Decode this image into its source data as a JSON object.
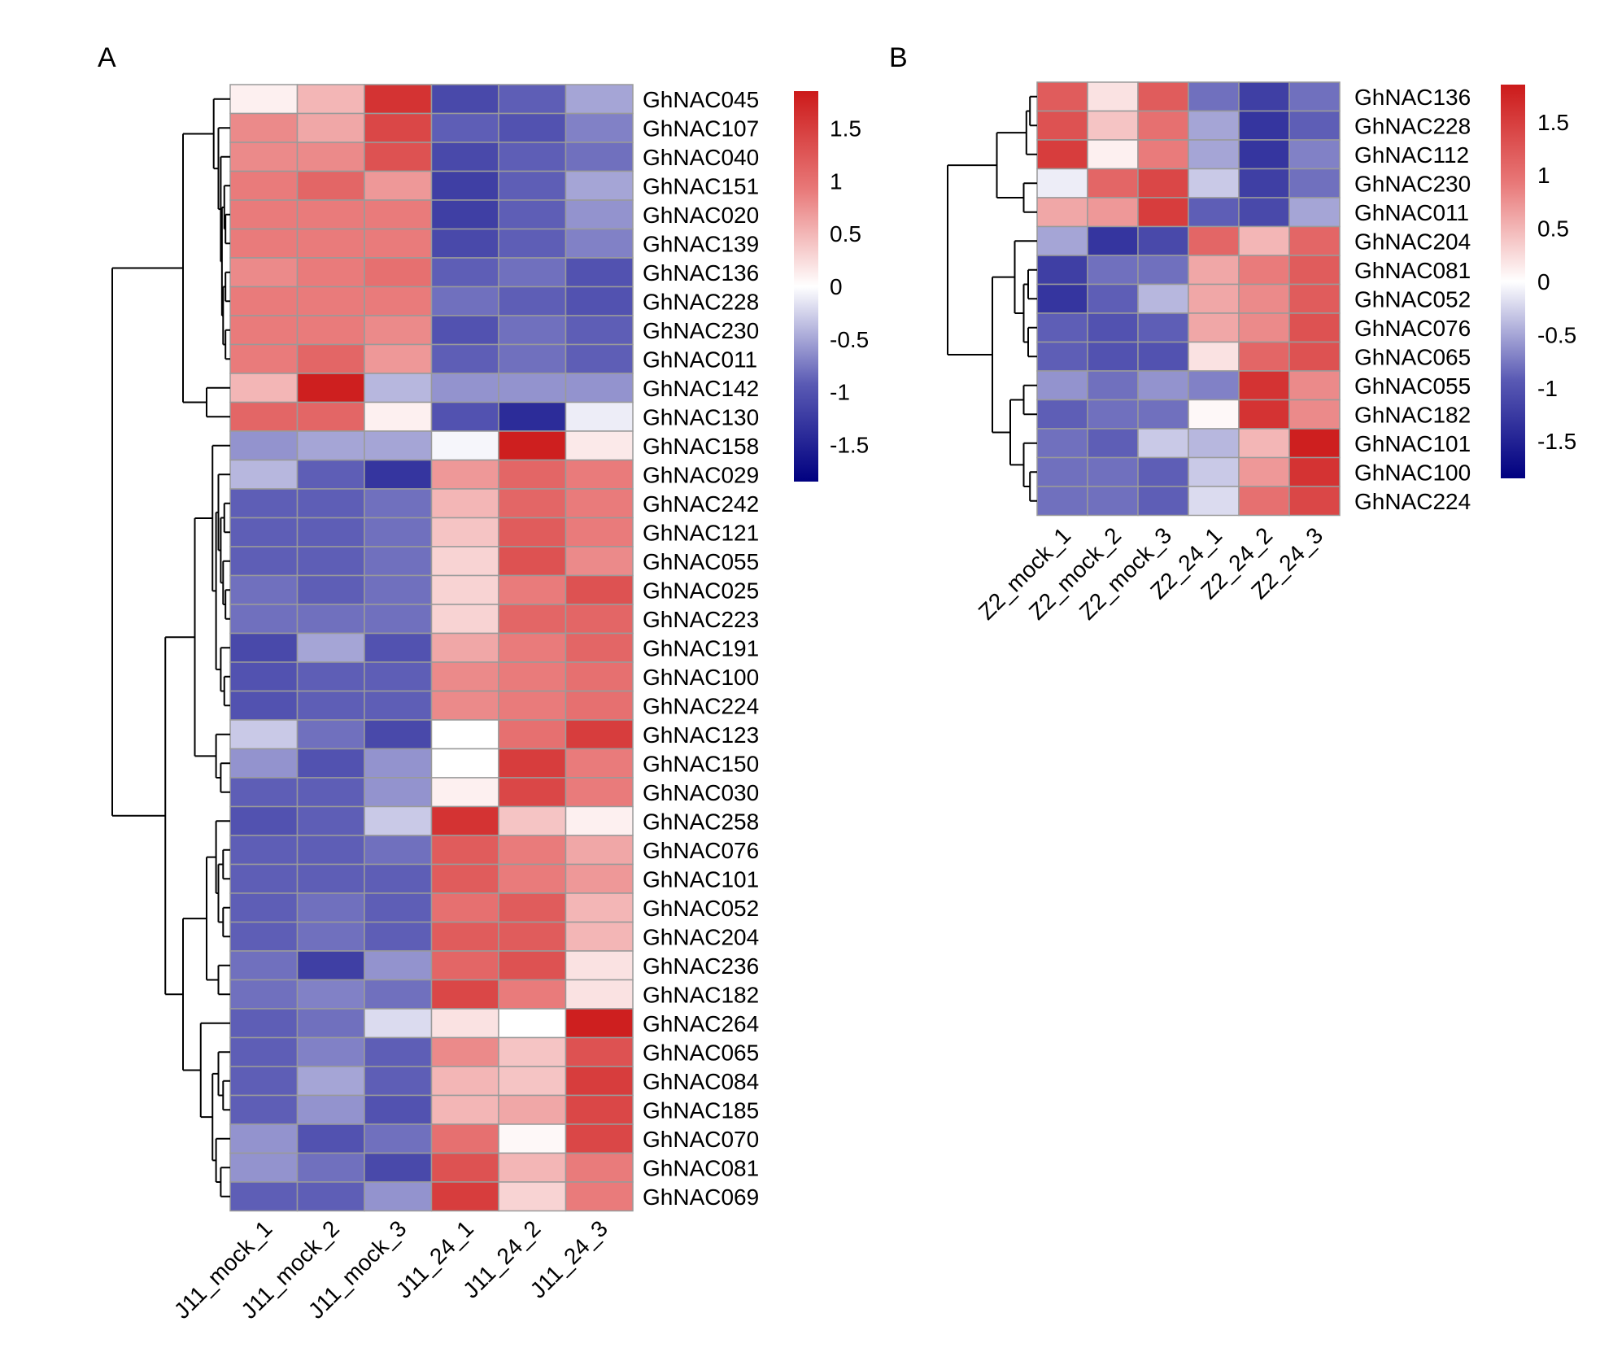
{
  "chart_data": [
    {
      "type": "heatmap",
      "panel": "A",
      "columns": [
        "J11_mock_1",
        "J11_mock_2",
        "J11_mock_3",
        "J11_24_1",
        "J11_24_2",
        "J11_24_3"
      ],
      "rows": [
        "GhNAC045",
        "GhNAC107",
        "GhNAC040",
        "GhNAC151",
        "GhNAC020",
        "GhNAC139",
        "GhNAC136",
        "GhNAC228",
        "GhNAC230",
        "GhNAC011",
        "GhNAC142",
        "GhNAC130",
        "GhNAC158",
        "GhNAC029",
        "GhNAC242",
        "GhNAC121",
        "GhNAC055",
        "GhNAC025",
        "GhNAC223",
        "GhNAC191",
        "GhNAC100",
        "GhNAC224",
        "GhNAC123",
        "GhNAC150",
        "GhNAC030",
        "GhNAC258",
        "GhNAC076",
        "GhNAC101",
        "GhNAC052",
        "GhNAC204",
        "GhNAC236",
        "GhNAC182",
        "GhNAC264",
        "GhNAC065",
        "GhNAC084",
        "GhNAC185",
        "GhNAC070",
        "GhNAC081",
        "GhNAC069"
      ],
      "values": [
        [
          0.1,
          0.5,
          1.6,
          -1.1,
          -0.9,
          -0.5
        ],
        [
          0.8,
          0.6,
          1.4,
          -0.9,
          -1.0,
          -0.7
        ],
        [
          0.8,
          0.8,
          1.3,
          -1.1,
          -0.9,
          -0.8
        ],
        [
          0.9,
          1.1,
          0.7,
          -1.2,
          -0.9,
          -0.5
        ],
        [
          0.9,
          0.9,
          0.9,
          -1.2,
          -0.9,
          -0.6
        ],
        [
          0.9,
          0.9,
          0.9,
          -1.1,
          -0.9,
          -0.7
        ],
        [
          0.8,
          0.9,
          1.0,
          -0.9,
          -0.8,
          -1.0
        ],
        [
          0.9,
          0.9,
          0.9,
          -0.8,
          -0.9,
          -1.0
        ],
        [
          0.9,
          0.9,
          0.8,
          -1.0,
          -0.8,
          -0.9
        ],
        [
          0.9,
          1.1,
          0.7,
          -0.9,
          -0.8,
          -0.9
        ],
        [
          0.5,
          1.8,
          -0.4,
          -0.6,
          -0.6,
          -0.6
        ],
        [
          1.1,
          1.1,
          0.1,
          -1.0,
          -1.4,
          -0.1
        ],
        [
          -0.6,
          -0.5,
          -0.5,
          -0.05,
          1.8,
          0.15
        ],
        [
          -0.4,
          -0.9,
          -1.3,
          0.7,
          1.1,
          0.9
        ],
        [
          -0.9,
          -0.9,
          -0.8,
          0.5,
          1.1,
          0.9
        ],
        [
          -0.9,
          -0.9,
          -0.8,
          0.4,
          1.2,
          0.9
        ],
        [
          -0.9,
          -0.9,
          -0.8,
          0.3,
          1.3,
          0.8
        ],
        [
          -0.8,
          -0.9,
          -0.8,
          0.3,
          0.9,
          1.3
        ],
        [
          -0.8,
          -0.8,
          -0.8,
          0.3,
          1.1,
          1.1
        ],
        [
          -1.1,
          -0.5,
          -1.0,
          0.6,
          0.9,
          1.1
        ],
        [
          -1.0,
          -0.9,
          -0.9,
          0.8,
          0.9,
          1.0
        ],
        [
          -1.0,
          -0.9,
          -0.9,
          0.8,
          0.9,
          1.0
        ],
        [
          -0.3,
          -0.8,
          -1.1,
          0.0,
          1.0,
          1.5
        ],
        [
          -0.6,
          -1.0,
          -0.6,
          0.0,
          1.5,
          0.9
        ],
        [
          -0.9,
          -0.9,
          -0.6,
          0.1,
          1.4,
          0.9
        ],
        [
          -1.0,
          -0.9,
          -0.3,
          1.6,
          0.4,
          0.1
        ],
        [
          -0.9,
          -0.9,
          -0.8,
          1.2,
          0.9,
          0.6
        ],
        [
          -0.9,
          -0.9,
          -0.9,
          1.2,
          0.9,
          0.7
        ],
        [
          -0.9,
          -0.8,
          -0.9,
          1.0,
          1.2,
          0.5
        ],
        [
          -0.9,
          -0.8,
          -0.9,
          1.2,
          1.2,
          0.5
        ],
        [
          -0.8,
          -1.2,
          -0.6,
          1.1,
          1.3,
          0.2
        ],
        [
          -0.8,
          -0.7,
          -0.8,
          1.4,
          0.9,
          0.2
        ],
        [
          -0.9,
          -0.8,
          -0.2,
          0.2,
          0.0,
          1.8
        ],
        [
          -0.9,
          -0.7,
          -0.9,
          0.8,
          0.4,
          1.3
        ],
        [
          -0.9,
          -0.5,
          -0.9,
          0.5,
          0.4,
          1.5
        ],
        [
          -0.9,
          -0.6,
          -1.0,
          0.5,
          0.6,
          1.4
        ],
        [
          -0.6,
          -1.0,
          -0.8,
          1.0,
          0.05,
          1.4
        ],
        [
          -0.6,
          -0.8,
          -1.1,
          1.3,
          0.5,
          0.9
        ],
        [
          -0.9,
          -0.9,
          -0.6,
          1.5,
          0.3,
          0.9
        ]
      ],
      "colorbar": {
        "ticks": [
          "1.5",
          "1",
          "0.5",
          "0",
          "-0.5",
          "-1",
          "-1.5"
        ],
        "tick_values": [
          1.5,
          1,
          0.5,
          0,
          -0.5,
          -1,
          -1.5
        ],
        "range": [
          -1.85,
          1.85
        ]
      }
    },
    {
      "type": "heatmap",
      "panel": "B",
      "columns": [
        "Z2_mock_1",
        "Z2_mock_2",
        "Z2_mock_3",
        "Z2_24_1",
        "Z2_24_2",
        "Z2_24_3"
      ],
      "rows": [
        "GhNAC136",
        "GhNAC228",
        "GhNAC112",
        "GhNAC230",
        "GhNAC011",
        "GhNAC204",
        "GhNAC081",
        "GhNAC052",
        "GhNAC076",
        "GhNAC065",
        "GhNAC055",
        "GhNAC182",
        "GhNAC101",
        "GhNAC100",
        "GhNAC224"
      ],
      "values": [
        [
          1.2,
          0.2,
          1.2,
          -0.8,
          -1.2,
          -0.8
        ],
        [
          1.3,
          0.4,
          1.0,
          -0.5,
          -1.3,
          -0.9
        ],
        [
          1.5,
          0.1,
          0.9,
          -0.5,
          -1.3,
          -0.7
        ],
        [
          -0.1,
          1.1,
          1.4,
          -0.3,
          -1.2,
          -0.8
        ],
        [
          0.6,
          0.7,
          1.5,
          -0.9,
          -1.1,
          -0.5
        ],
        [
          -0.5,
          -1.3,
          -1.1,
          1.1,
          0.5,
          1.1
        ],
        [
          -1.2,
          -0.8,
          -0.8,
          0.6,
          0.9,
          1.2
        ],
        [
          -1.3,
          -0.9,
          -0.4,
          0.6,
          0.8,
          1.2
        ],
        [
          -0.9,
          -1.0,
          -0.9,
          0.6,
          0.8,
          1.3
        ],
        [
          -0.9,
          -1.0,
          -1.0,
          0.2,
          1.1,
          1.3
        ],
        [
          -0.6,
          -0.8,
          -0.6,
          -0.7,
          1.6,
          0.8
        ],
        [
          -0.9,
          -0.8,
          -0.8,
          0.05,
          1.6,
          0.8
        ],
        [
          -0.8,
          -0.9,
          -0.3,
          -0.4,
          0.5,
          1.8
        ],
        [
          -0.8,
          -0.8,
          -0.9,
          -0.3,
          0.7,
          1.6
        ],
        [
          -0.8,
          -0.8,
          -0.9,
          -0.2,
          1.0,
          1.4
        ]
      ],
      "colorbar": {
        "ticks": [
          "1.5",
          "1",
          "0.5",
          "0",
          "-0.5",
          "-1",
          "-1.5"
        ],
        "tick_values": [
          1.5,
          1,
          0.5,
          0,
          -0.5,
          -1,
          -1.5
        ],
        "range": [
          -1.85,
          1.85
        ]
      }
    }
  ],
  "panels": {
    "a": {
      "letter": "A"
    },
    "b": {
      "letter": "B"
    }
  },
  "colors": {
    "low": "#000080",
    "mid": "#ffffff",
    "high": "#cc1a1a",
    "cell_border": "#9a9a9a"
  }
}
